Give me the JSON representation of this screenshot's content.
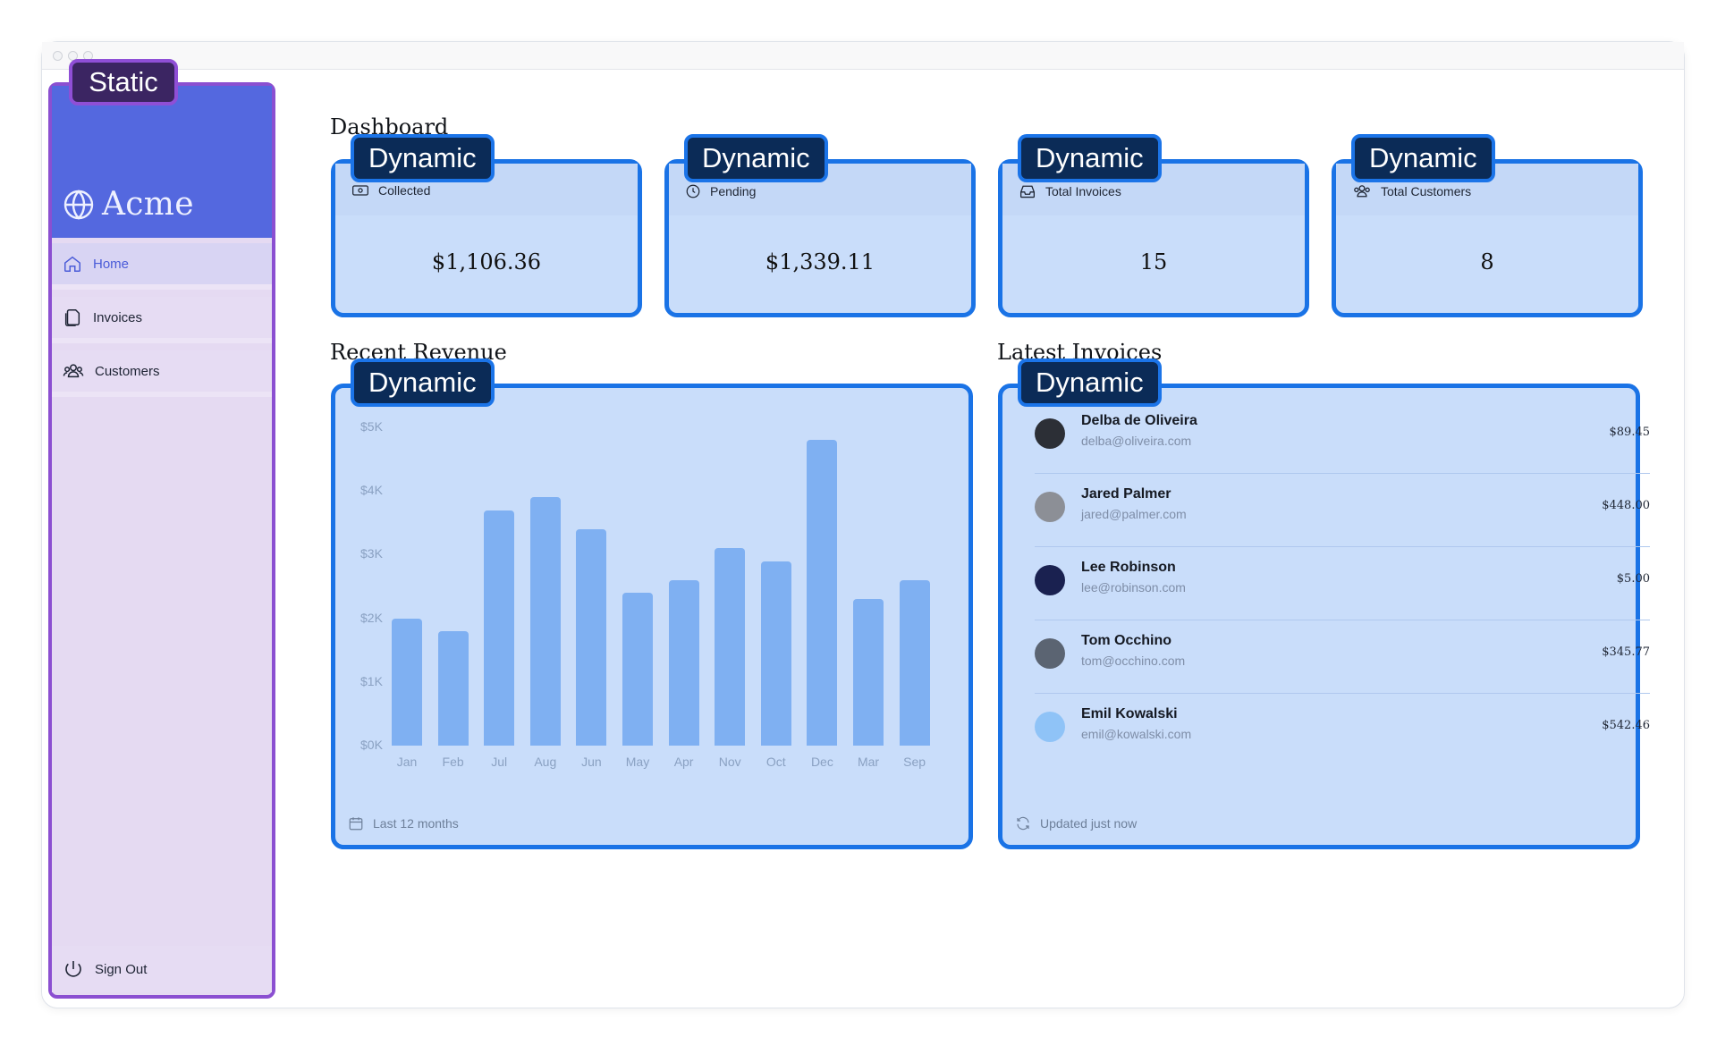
{
  "overlay_labels": {
    "static": "Static",
    "dynamic": "Dynamic"
  },
  "sidebar": {
    "brand": "Acme",
    "items": [
      {
        "label": "Home",
        "icon": "home-icon",
        "active": true
      },
      {
        "label": "Invoices",
        "icon": "document-icon",
        "active": false
      },
      {
        "label": "Customers",
        "icon": "users-icon",
        "active": false
      }
    ],
    "sign_out": "Sign Out"
  },
  "main": {
    "title": "Dashboard",
    "cards": [
      {
        "title": "Collected",
        "value": "$1,106.36",
        "icon": "banknote-icon"
      },
      {
        "title": "Pending",
        "value": "$1,339.11",
        "icon": "clock-icon"
      },
      {
        "title": "Total Invoices",
        "value": "15",
        "icon": "inbox-icon"
      },
      {
        "title": "Total Customers",
        "value": "8",
        "icon": "users-icon"
      }
    ],
    "revenue_title": "Recent Revenue",
    "revenue_footer": "Last 12 months",
    "invoices_title": "Latest Invoices",
    "invoices_footer": "Updated just now",
    "invoices": [
      {
        "name": "Delba de Oliveira",
        "email": "delba@oliveira.com",
        "amount": "$89.45",
        "avatar_color": "#2c2f36"
      },
      {
        "name": "Jared Palmer",
        "email": "jared@palmer.com",
        "amount": "$448.00",
        "avatar_color": "#8c8f96"
      },
      {
        "name": "Lee Robinson",
        "email": "lee@robinson.com",
        "amount": "$5.00",
        "avatar_color": "#1a2150"
      },
      {
        "name": "Tom Occhino",
        "email": "tom@occhino.com",
        "amount": "$345.77",
        "avatar_color": "#5b6472"
      },
      {
        "name": "Emil Kowalski",
        "email": "emil@kowalski.com",
        "amount": "$542.46",
        "avatar_color": "#8fc3f7"
      }
    ]
  },
  "chart_data": {
    "type": "bar",
    "categories": [
      "Jan",
      "Feb",
      "Jul",
      "Aug",
      "Jun",
      "May",
      "Apr",
      "Nov",
      "Oct",
      "Dec",
      "Mar",
      "Sep"
    ],
    "values": [
      2000,
      1800,
      3700,
      3900,
      3400,
      2400,
      2600,
      3100,
      2900,
      4800,
      2300,
      2600
    ],
    "ytick_labels": [
      "$5K",
      "$4K",
      "$3K",
      "$2K",
      "$1K",
      "$0K"
    ],
    "ylim": [
      0,
      5000
    ],
    "grid": false,
    "bar_color": "#7fb0f2"
  },
  "colors": {
    "static_border": "#8b4fd1",
    "dynamic_border": "#1a73e6",
    "dynamic_fill": "#c9ddfa",
    "brand_blue": "#5468df"
  }
}
